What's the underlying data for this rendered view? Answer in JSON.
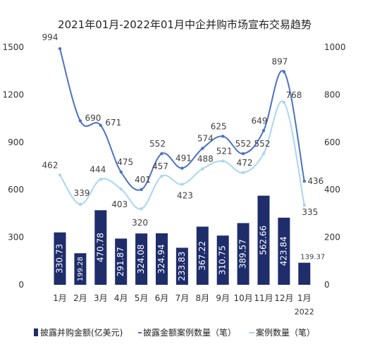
{
  "chart_data": {
    "type": "bar",
    "title": "2021年01月-2022年01月中企并购市场宣布交易趋势",
    "categories": [
      "1月",
      "2月",
      "3月",
      "4月",
      "5月",
      "6月",
      "7月",
      "8月",
      "9月",
      "10月",
      "11月",
      "12月",
      "1月"
    ],
    "year_note": "2022",
    "series": [
      {
        "name": "披露并购金额(亿美元)",
        "type": "bar",
        "axis": "left",
        "color": "#1f2d6b",
        "values": [
          330.73,
          199.28,
          470.78,
          291.87,
          324.08,
          324.94,
          233.83,
          367.22,
          310.75,
          389.57,
          562.66,
          423.84,
          139.37
        ]
      },
      {
        "name": "披露金额案例数量（笔）",
        "type": "line",
        "axis": "right",
        "color": "#4a72c4",
        "values": [
          994,
          690,
          671,
          475,
          401,
          552,
          491,
          574,
          625,
          552,
          649,
          897,
          436
        ]
      },
      {
        "name": "案例数量（笔）",
        "type": "line",
        "axis": "right",
        "color": "#a9d6f0",
        "values": [
          462,
          339,
          444,
          403,
          320,
          457,
          423,
          488,
          521,
          472,
          552,
          768,
          335
        ]
      }
    ],
    "y_left": {
      "min": 0,
      "max": 1500,
      "ticks": [
        0,
        300,
        600,
        900,
        1200,
        1500
      ]
    },
    "y_right": {
      "min": 0,
      "max": 1000,
      "ticks": [
        0,
        200,
        400,
        600,
        800,
        1000
      ]
    },
    "legend_position": "bottom"
  }
}
